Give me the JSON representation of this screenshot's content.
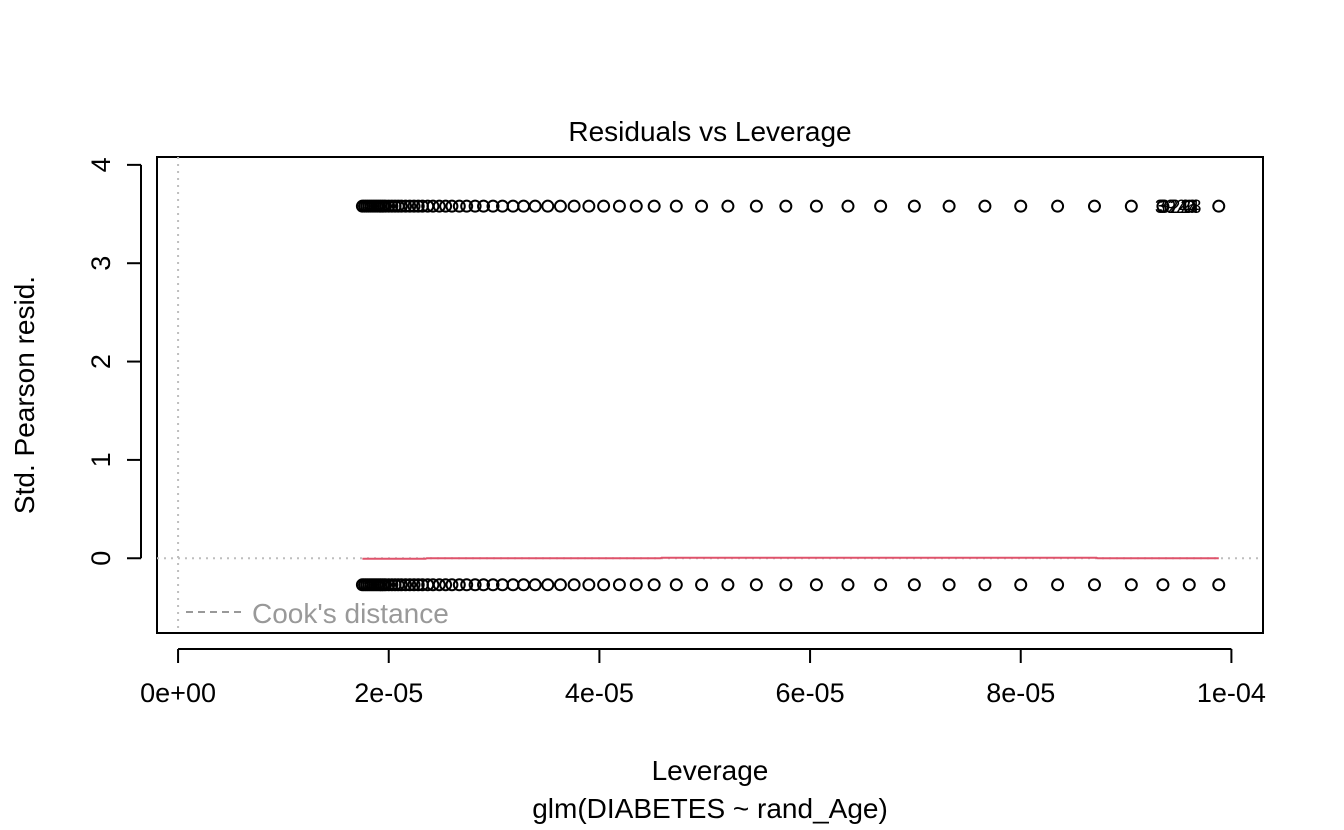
{
  "chart_data": {
    "type": "scatter",
    "title": "Residuals vs Leverage",
    "xlabel": "Leverage",
    "subtitle": "glm(DIABETES ~ rand_Age)",
    "ylabel": "Std. Pearson resid.",
    "xlim": [
      -2e-06,
      0.000103
    ],
    "ylim": [
      -0.76,
      4.08
    ],
    "x_ticks": [
      0,
      2e-05,
      4e-05,
      6e-05,
      8e-05,
      0.0001
    ],
    "x_tick_labels": [
      "0e+00",
      "2e-05",
      "4e-05",
      "6e-05",
      "8e-05",
      "1e-04"
    ],
    "y_ticks": [
      0,
      1,
      2,
      3,
      4
    ],
    "y_tick_labels": [
      "0",
      "1",
      "2",
      "3",
      "4"
    ],
    "reference_lines": {
      "h": 0,
      "v": 0,
      "style": "dotted",
      "color": "#bebebe"
    },
    "series": [
      {
        "name": "",
        "y": 3.58,
        "x": [
          1.75e-05,
          1.77e-05,
          1.79e-05,
          1.81e-05,
          1.83e-05,
          1.85e-05,
          1.87e-05,
          1.89e-05,
          1.91e-05,
          1.93e-05,
          1.95e-05,
          1.97e-05,
          2e-05,
          2.03e-05,
          2.06e-05,
          2.09e-05,
          2.12e-05,
          2.16e-05,
          2.2e-05,
          2.24e-05,
          2.28e-05,
          2.32e-05,
          2.37e-05,
          2.42e-05,
          2.48e-05,
          2.54e-05,
          2.6e-05,
          2.67e-05,
          2.74e-05,
          2.82e-05,
          2.9e-05,
          2.99e-05,
          3.08e-05,
          3.18e-05,
          3.28e-05,
          3.39e-05,
          3.51e-05,
          3.63e-05,
          3.76e-05,
          3.9e-05,
          4.04e-05,
          4.19e-05,
          4.35e-05,
          4.52e-05,
          4.73e-05,
          4.97e-05,
          5.22e-05,
          5.49e-05,
          5.77e-05,
          6.06e-05,
          6.36e-05,
          6.67e-05,
          6.99e-05,
          7.32e-05,
          7.66e-05,
          8e-05,
          8.35e-05,
          8.7e-05,
          9.05e-05,
          9.35e-05,
          9.6e-05,
          9.88e-05
        ]
      },
      {
        "name": "",
        "y": -0.27,
        "x": [
          1.75e-05,
          1.77e-05,
          1.79e-05,
          1.81e-05,
          1.83e-05,
          1.85e-05,
          1.87e-05,
          1.89e-05,
          1.91e-05,
          1.93e-05,
          1.95e-05,
          1.97e-05,
          2e-05,
          2.03e-05,
          2.06e-05,
          2.09e-05,
          2.12e-05,
          2.16e-05,
          2.2e-05,
          2.24e-05,
          2.28e-05,
          2.32e-05,
          2.37e-05,
          2.42e-05,
          2.48e-05,
          2.54e-05,
          2.6e-05,
          2.67e-05,
          2.74e-05,
          2.82e-05,
          2.9e-05,
          2.99e-05,
          3.08e-05,
          3.18e-05,
          3.28e-05,
          3.39e-05,
          3.51e-05,
          3.63e-05,
          3.76e-05,
          3.9e-05,
          4.04e-05,
          4.19e-05,
          4.35e-05,
          4.52e-05,
          4.73e-05,
          4.97e-05,
          5.22e-05,
          5.49e-05,
          5.77e-05,
          6.06e-05,
          6.36e-05,
          6.67e-05,
          6.99e-05,
          7.32e-05,
          7.66e-05,
          8e-05,
          8.35e-05,
          8.7e-05,
          9.05e-05,
          9.35e-05,
          9.6e-05,
          9.88e-05
        ]
      }
    ],
    "smooth_line": {
      "color": "#DF536B",
      "x": [
        1.75e-05,
        2.35e-05,
        2.36e-05,
        4.58e-05,
        4.59e-05,
        8.72e-05,
        8.73e-05,
        9.88e-05
      ],
      "y": [
        -0.005,
        -0.005,
        0.0,
        0.0,
        0.005,
        0.005,
        0.0,
        0.0
      ]
    },
    "point_labels": [
      {
        "text": "3926",
        "x": 9.35e-05,
        "y": 3.58
      },
      {
        "text": "3244",
        "x": 9.37e-05,
        "y": 3.58
      },
      {
        "text": "3228",
        "x": 9.39e-05,
        "y": 3.58
      }
    ],
    "legend": {
      "position": "bottom-left",
      "entries": [
        {
          "label": "Cook's distance",
          "style": "dashed",
          "color": "#999999"
        }
      ]
    }
  }
}
